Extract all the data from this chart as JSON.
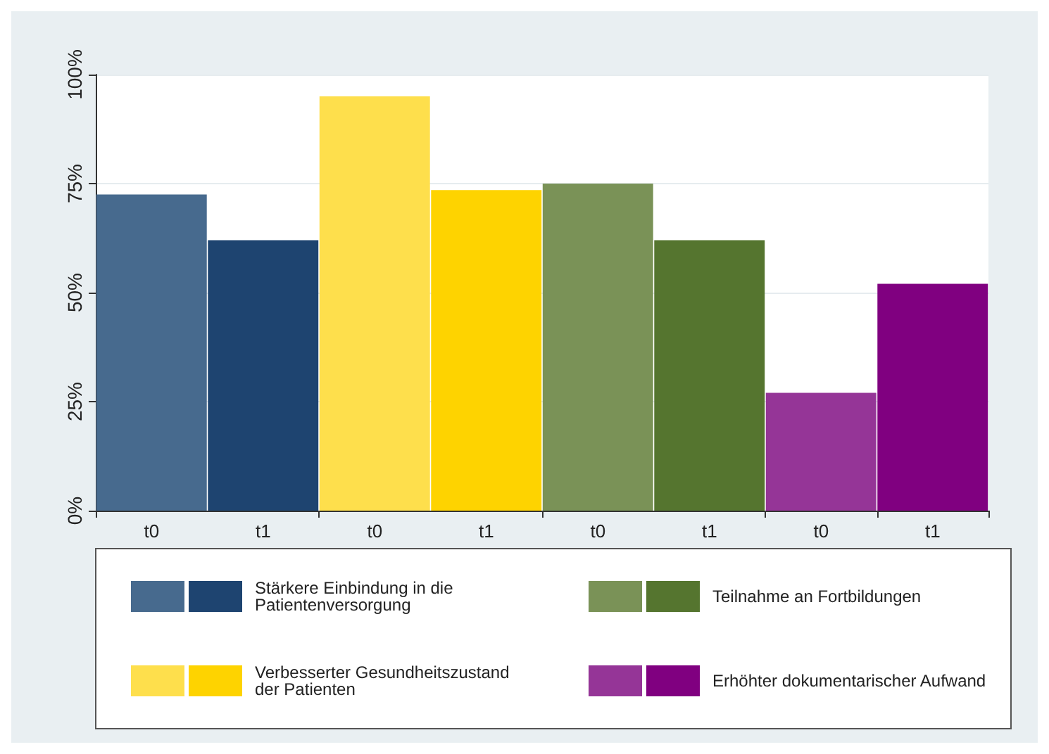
{
  "chart_data": {
    "type": "bar",
    "categories": [
      "t0",
      "t1",
      "t0",
      "t1",
      "t0",
      "t1",
      "t0",
      "t1"
    ],
    "series": [
      {
        "name": "Stärkere Einbindung in die Patientenversorgung",
        "colors": [
          "#476a8e",
          "#1e4470",
          null,
          null,
          null,
          null,
          null,
          null
        ],
        "values": [
          72.5,
          62,
          null,
          null,
          null,
          null,
          null,
          null
        ]
      },
      {
        "name": "Verbesserter Gesundheitszustand der Patienten",
        "colors": [
          null,
          null,
          "#fedf4c",
          "#fed300",
          null,
          null,
          null,
          null
        ],
        "values": [
          null,
          null,
          95,
          73.5,
          null,
          null,
          null,
          null
        ]
      },
      {
        "name": "Teilnahme an Fortbildungen",
        "colors": [
          null,
          null,
          null,
          null,
          "#7a9257",
          "#55752f",
          null,
          null
        ],
        "values": [
          null,
          null,
          null,
          null,
          75,
          62,
          null,
          null
        ]
      },
      {
        "name": "Erhöhter dokumentarischer Aufwand",
        "colors": [
          null,
          null,
          null,
          null,
          null,
          null,
          "#953597",
          "#800080"
        ],
        "values": [
          null,
          null,
          null,
          null,
          null,
          null,
          27,
          52
        ]
      }
    ],
    "ylim": [
      0,
      100
    ],
    "yticks": [
      {
        "value": 0,
        "label": "0%"
      },
      {
        "value": 25,
        "label": "25%"
      },
      {
        "value": 50,
        "label": "50%"
      },
      {
        "value": 75,
        "label": "75%"
      },
      {
        "value": 100,
        "label": "100%"
      }
    ],
    "grid": "y",
    "legend": "bottom"
  }
}
